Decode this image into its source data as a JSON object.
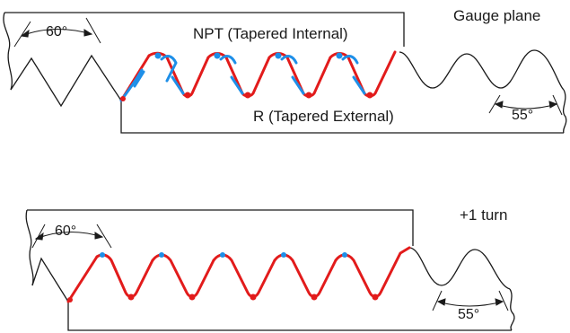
{
  "top_panel": {
    "internal_label": "NPT (Tapered Internal)",
    "external_label": "R (Tapered External)",
    "state_label": "Gauge plane",
    "npt_angle": "60°",
    "r_angle": "55°"
  },
  "bottom_panel": {
    "state_label": "+1 turn",
    "npt_angle": "60°",
    "r_angle": "55°"
  },
  "colors": {
    "outline": "#1a1a1a",
    "npt_interference": "#e21b1b",
    "r_interference": "#1e8fe8"
  }
}
